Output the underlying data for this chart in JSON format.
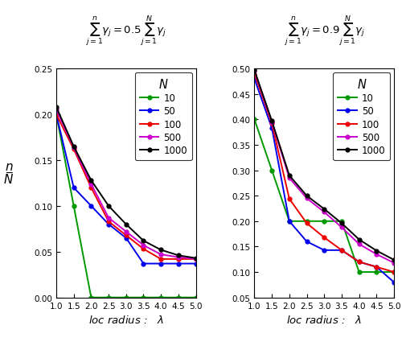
{
  "panel1": {
    "ylim": [
      0.0,
      0.25
    ],
    "yticks": [
      0.0,
      0.05,
      0.1,
      0.15,
      0.2,
      0.25
    ],
    "series": {
      "10": {
        "color": "#009900",
        "x": [
          1.0,
          1.5,
          2.0,
          2.5,
          3.0,
          3.5,
          4.0,
          4.5,
          5.0
        ],
        "y": [
          0.2,
          0.1,
          0.0,
          0.0,
          0.0,
          0.0,
          0.0,
          0.0,
          0.0
        ]
      },
      "50": {
        "color": "#0000ee",
        "x": [
          1.0,
          1.5,
          2.0,
          2.5,
          3.0,
          3.5,
          4.0,
          4.5,
          5.0
        ],
        "y": [
          0.2,
          0.12,
          0.1,
          0.08,
          0.065,
          0.037,
          0.037,
          0.037,
          0.037
        ]
      },
      "100": {
        "color": "#ee0000",
        "x": [
          1.0,
          1.5,
          2.0,
          2.5,
          3.0,
          3.5,
          4.0,
          4.5,
          5.0
        ],
        "y": [
          0.2,
          0.162,
          0.12,
          0.083,
          0.068,
          0.053,
          0.042,
          0.042,
          0.042
        ]
      },
      "500": {
        "color": "#cc00cc",
        "x": [
          1.0,
          1.5,
          2.0,
          2.5,
          3.0,
          3.5,
          4.0,
          4.5,
          5.0
        ],
        "y": [
          0.205,
          0.164,
          0.124,
          0.087,
          0.072,
          0.057,
          0.047,
          0.044,
          0.042
        ]
      },
      "1000": {
        "color": "#000000",
        "x": [
          1.0,
          1.5,
          2.0,
          2.5,
          3.0,
          3.5,
          4.0,
          4.5,
          5.0
        ],
        "y": [
          0.208,
          0.165,
          0.128,
          0.1,
          0.08,
          0.062,
          0.052,
          0.046,
          0.043
        ]
      }
    }
  },
  "panel2": {
    "ylim": [
      0.05,
      0.5
    ],
    "yticks": [
      0.05,
      0.1,
      0.15,
      0.2,
      0.25,
      0.3,
      0.35,
      0.4,
      0.45,
      0.5
    ],
    "series": {
      "10": {
        "color": "#009900",
        "x": [
          1.0,
          1.5,
          2.0,
          2.5,
          3.0,
          3.5,
          4.0,
          4.5,
          5.0
        ],
        "y": [
          0.4,
          0.3,
          0.2,
          0.2,
          0.2,
          0.2,
          0.1,
          0.1,
          0.1
        ]
      },
      "50": {
        "color": "#0000ee",
        "x": [
          1.0,
          1.5,
          2.0,
          2.5,
          3.0,
          3.5,
          4.0,
          4.5,
          5.0
        ],
        "y": [
          0.48,
          0.383,
          0.2,
          0.16,
          0.143,
          0.143,
          0.12,
          0.11,
          0.08
        ]
      },
      "100": {
        "color": "#ee0000",
        "x": [
          1.0,
          1.5,
          2.0,
          2.5,
          3.0,
          3.5,
          4.0,
          4.5,
          5.0
        ],
        "y": [
          0.49,
          0.392,
          0.244,
          0.196,
          0.168,
          0.143,
          0.12,
          0.11,
          0.1
        ]
      },
      "500": {
        "color": "#cc00cc",
        "x": [
          1.0,
          1.5,
          2.0,
          2.5,
          3.0,
          3.5,
          4.0,
          4.5,
          5.0
        ],
        "y": [
          0.495,
          0.395,
          0.285,
          0.245,
          0.218,
          0.188,
          0.155,
          0.135,
          0.118
        ]
      },
      "1000": {
        "color": "#000000",
        "x": [
          1.0,
          1.5,
          2.0,
          2.5,
          3.0,
          3.5,
          4.0,
          4.5,
          5.0
        ],
        "y": [
          0.497,
          0.397,
          0.29,
          0.25,
          0.224,
          0.196,
          0.164,
          0.142,
          0.124
        ]
      }
    }
  },
  "legend_order": [
    "10",
    "50",
    "100",
    "500",
    "1000"
  ],
  "xlabel": "loc radius :   $\\lambda$",
  "ylabel_top": "n",
  "ylabel_bottom": "N",
  "xticks": [
    1.0,
    1.5,
    2.0,
    2.5,
    3.0,
    3.5,
    4.0,
    4.5,
    5.0
  ],
  "xlim": [
    1.0,
    5.0
  ],
  "marker": "o",
  "markersize": 3.5,
  "linewidth": 1.4,
  "title1": "$\\sum_{j=1}^{n} \\gamma_j = 0.5 \\sum_{j=1}^{N} \\gamma_j$",
  "title2": "$\\sum_{j=1}^{n} \\gamma_j = 0.9 \\sum_{j=1}^{N} \\gamma_j$"
}
